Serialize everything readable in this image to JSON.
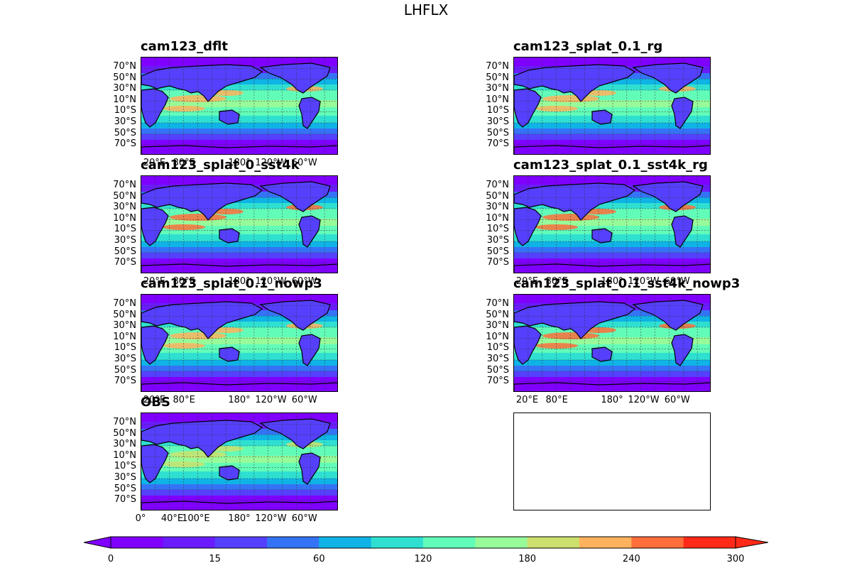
{
  "figure_title": "LHFLX",
  "panels": [
    {
      "title": "cam123_dflt",
      "bottom_labels": [
        "20°E",
        "80°E",
        "180°",
        "120°W",
        "60°W"
      ],
      "highlight": 0.55
    },
    {
      "title": "cam123_splat_0.1_rg",
      "bottom_labels": [],
      "highlight": 0.5
    },
    {
      "title": "cam123_splat_0_sst4k",
      "bottom_labels": [
        "20°E",
        "80°E",
        "180°",
        "120°W",
        "60°W"
      ],
      "highlight": 1.0
    },
    {
      "title": "cam123_splat_0.1_sst4k_rg",
      "bottom_labels": [
        "20°E",
        "80°E",
        "180°",
        "120°W",
        "60°W"
      ],
      "highlight": 0.95
    },
    {
      "title": "cam123_splat_0.1_nowp3",
      "bottom_labels": [
        "20°E",
        "80°E",
        "180°",
        "120°W",
        "60°W"
      ],
      "highlight": 0.5
    },
    {
      "title": "cam123_splat_0.1_sst4k_nowp3",
      "bottom_labels": [
        "20°E",
        "80°E",
        "180°",
        "120°W",
        "60°W"
      ],
      "highlight": 1.0
    },
    {
      "title": "OBS",
      "bottom_labels": [
        "0°",
        "40°E",
        "100°E",
        "180°",
        "120°W",
        "60°W"
      ],
      "highlight": 0.2
    },
    {
      "title": "",
      "bottom_labels": [],
      "highlight": 0,
      "empty": true
    }
  ],
  "lat_labels": [
    "70°N",
    "50°N",
    "30°N",
    "10°N",
    "10°S",
    "30°S",
    "50°S",
    "70°S"
  ],
  "colorbar": {
    "levels": [
      0,
      15,
      60,
      120,
      180,
      240,
      300
    ],
    "tick_labels": [
      "0",
      "15",
      "60",
      "120",
      "180",
      "240",
      "300"
    ],
    "colors": [
      "#7f00ff",
      "#6a1cff",
      "#5540fe",
      "#3573f6",
      "#0fb3e6",
      "#2fe0d1",
      "#62fcb9",
      "#97fb99",
      "#cce06d",
      "#ffb25d",
      "#ff6e3b",
      "#ff2a17"
    ]
  },
  "chart_data": {
    "type": "heatmap",
    "title": "LHFLX",
    "subplots": [
      "cam123_dflt",
      "cam123_splat_0.1_rg",
      "cam123_splat_0_sst4k",
      "cam123_splat_0.1_sst4k_rg",
      "cam123_splat_0.1_nowp3",
      "cam123_splat_0.1_sst4k_nowp3",
      "OBS"
    ],
    "y_ticks": [
      "70°N",
      "50°N",
      "30°N",
      "10°N",
      "10°S",
      "30°S",
      "50°S",
      "70°S"
    ],
    "colorbar_ticks": [
      0,
      15,
      60,
      120,
      180,
      240,
      300
    ],
    "colorbar_range": [
      0,
      300
    ],
    "extend": "both"
  }
}
